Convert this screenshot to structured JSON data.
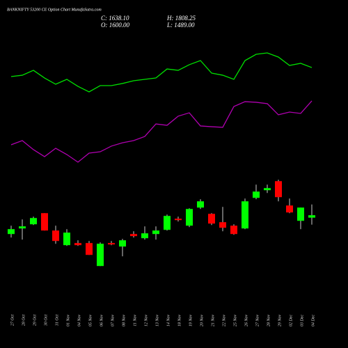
{
  "header": {
    "title": "BANKNIFTY 53200 CE Option Chart MunafaSutra.com",
    "close": "C: 1638.10",
    "high": "H: 1808.25",
    "open": "O: 1600.00",
    "low": "L: 1489.00"
  },
  "chart_data": {
    "type": "candlestick",
    "categories": [
      "27 Oct",
      "28 Oct",
      "29 Oct",
      "30 Oct",
      "31 Oct",
      "01 Nov",
      "04 Nov",
      "05 Nov",
      "06 Nov",
      "07 Nov",
      "08 Nov",
      "11 Nov",
      "12 Nov",
      "13 Nov",
      "14 Nov",
      "18 Nov",
      "19 Nov",
      "20 Nov",
      "21 Nov",
      "22 Nov",
      "25 Nov",
      "26 Nov",
      "27 Nov",
      "28 Nov",
      "29 Nov",
      "02 Dec",
      "03 Dec",
      "04 Dec"
    ],
    "open": [
      1341,
      1429,
      1495,
      1671,
      1396,
      1165,
      1198,
      1198,
      835,
      1198,
      1143,
      1341,
      1275,
      1341,
      1407,
      1583,
      1473,
      1759,
      1660,
      1528,
      1473,
      1429,
      1913,
      2034,
      2177,
      1792,
      1550,
      1600
    ],
    "high": [
      1473,
      1572,
      1616,
      1671,
      1473,
      1418,
      1242,
      1231,
      1209,
      1231,
      1264,
      1385,
      1462,
      1462,
      1649,
      1616,
      1748,
      1891,
      1671,
      1770,
      1495,
      1902,
      2122,
      2122,
      2199,
      1902,
      1759,
      1808.25
    ],
    "low": [
      1286,
      1253,
      1484,
      1396,
      1187,
      1154,
      1154,
      1011,
      835,
      1165,
      989,
      1286,
      1253,
      1253,
      1396,
      1539,
      1451,
      1737,
      1484,
      1385,
      1330,
      1418,
      1891,
      1990,
      1858,
      1671,
      1418,
      1489
    ],
    "close": [
      1418,
      1462,
      1594,
      1396,
      1231,
      1363,
      1165,
      1011,
      1187,
      1176,
      1242,
      1308,
      1352,
      1396,
      1627,
      1561,
      1737,
      1858,
      1506,
      1440,
      1341,
      1858,
      2012,
      2067,
      1924,
      1682,
      1759,
      1638.1
    ],
    "up_color": "#00ff00",
    "down_color": "#ff0000",
    "ylim": [
      650,
      2400
    ],
    "lines_ylim": [
      0,
      100
    ],
    "lines": [
      {
        "color": "#00e000",
        "values": [
          72.2,
          73.3,
          77.2,
          71.1,
          66.1,
          70,
          64.4,
          60,
          65,
          65,
          66.7,
          68.9,
          70,
          71.1,
          78.3,
          77.2,
          81.7,
          85,
          75,
          73.3,
          70,
          85,
          90,
          91.1,
          87.8,
          81.1,
          82.8,
          79.4
        ]
      },
      {
        "color": "#b000b0",
        "values": [
          17.8,
          21.1,
          13.9,
          8.3,
          15,
          10,
          3.9,
          11.1,
          12.2,
          16.7,
          19.4,
          21.1,
          24.4,
          34.4,
          33.3,
          40.6,
          43.3,
          32.8,
          32.2,
          31.7,
          48.3,
          52.2,
          51.7,
          50.6,
          41.7,
          43.9,
          42.8,
          52.8
        ]
      }
    ]
  }
}
